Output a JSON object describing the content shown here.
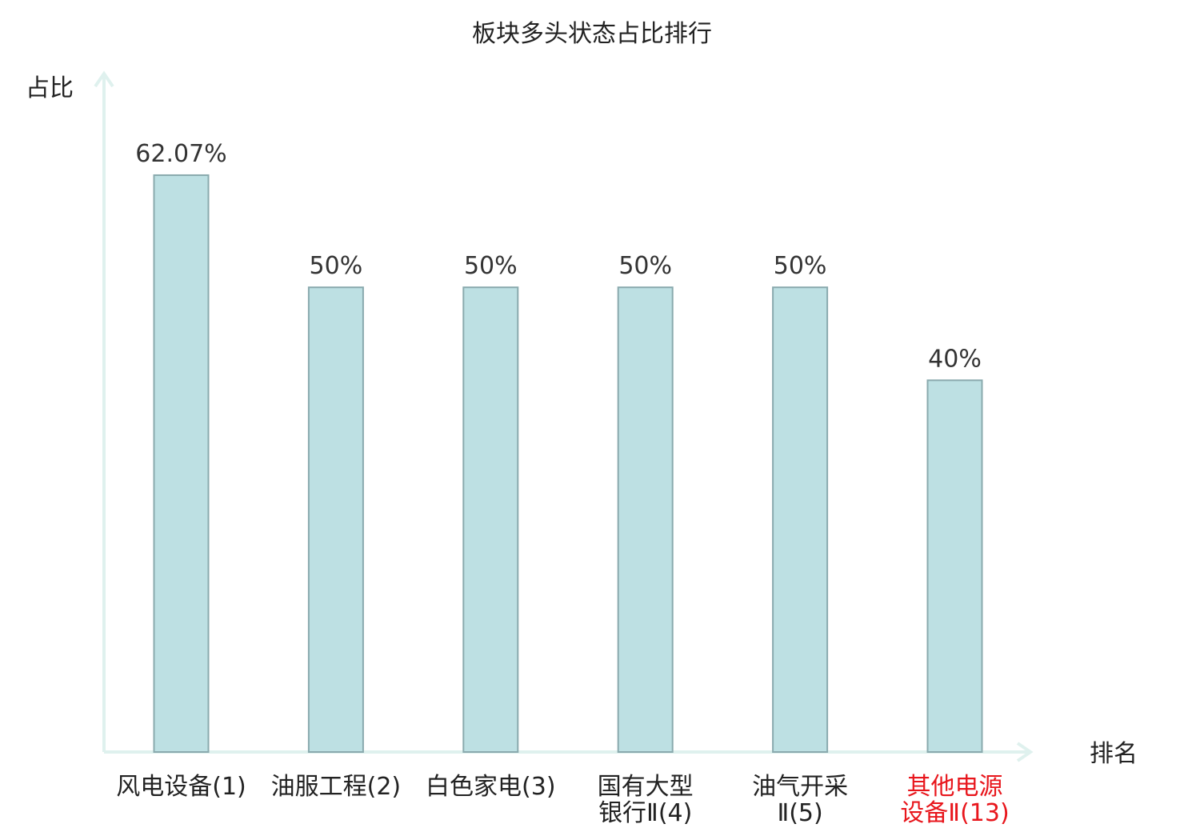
{
  "chart_data": {
    "type": "bar",
    "title": "板块多头状态占比排行",
    "ylabel": "占比",
    "xlabel": "排名",
    "ylim": [
      0,
      73
    ],
    "grid": false,
    "categories": [
      "风电设备(1)",
      "油服工程(2)",
      "白色家电(3)",
      "国有大型银行Ⅱ(4)",
      "油气开采Ⅱ(5)",
      "其他电源设备Ⅱ(13)"
    ],
    "category_lines": [
      [
        "风电设备(1)"
      ],
      [
        "油服工程(2)"
      ],
      [
        "白色家电(3)"
      ],
      [
        "国有大型",
        "银行Ⅱ(4)"
      ],
      [
        "油气开采",
        "Ⅱ(5)"
      ],
      [
        "其他电源",
        "设备Ⅱ(13)"
      ]
    ],
    "values": [
      62.07,
      50,
      50,
      50,
      50,
      40
    ],
    "value_labels": [
      "62.07%",
      "50%",
      "50%",
      "50%",
      "50%",
      "40%"
    ],
    "highlight_index": 5
  },
  "colors": {
    "bar_fill": "#bde0e3",
    "bar_stroke": "#8aaaae",
    "axis": "#dff1ee",
    "text": "#222222",
    "highlight_text": "#e8161c"
  }
}
